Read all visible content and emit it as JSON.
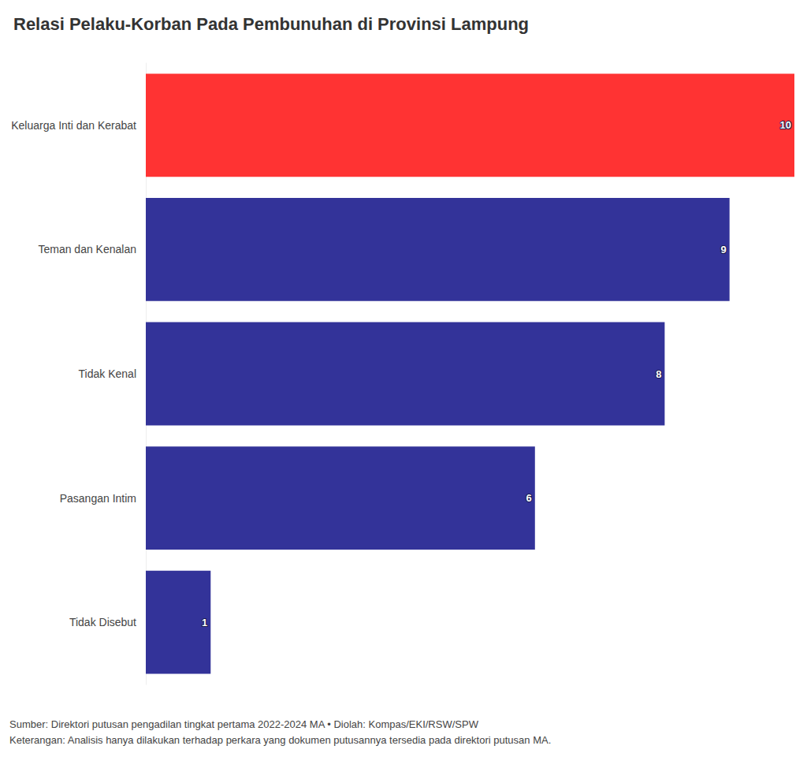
{
  "chart_data": {
    "type": "bar",
    "title": "Relasi Pelaku-Korban Pada Pembunuhan di Provinsi Lampung",
    "categories": [
      "Keluarga Inti dan Kerabat",
      "Teman dan Kenalan",
      "Tidak Kenal",
      "Pasangan Intim",
      "Tidak Disebut"
    ],
    "values": [
      10,
      9,
      8,
      6,
      1
    ],
    "colors": [
      "#ff3333",
      "#333399",
      "#333399",
      "#333399",
      "#333399"
    ],
    "orientation": "horizontal",
    "xlim": [
      0,
      10
    ],
    "grid": false,
    "data_labels": true,
    "tick_labels": "y",
    "source": "Sumber: Direktori putusan pengadilan tingkat pertama 2022-2024 MA • Diolah: Kompas/EKI/RSW/SPW",
    "note": "Keterangan: Analisis hanya dilakukan terhadap perkara yang dokumen putusannya tersedia pada direktori putusan MA."
  }
}
